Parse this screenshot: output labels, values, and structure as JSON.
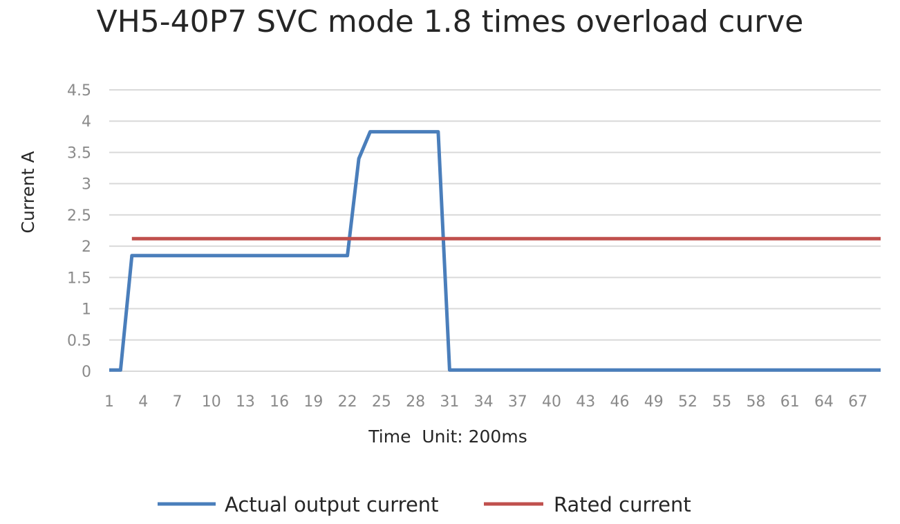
{
  "chart_data": {
    "type": "line",
    "title": "VH5-40P7 SVC mode 1.8 times overload curve",
    "xlabel": "Time  Unit: 200ms",
    "ylabel": "Current A",
    "x_range": [
      1,
      69
    ],
    "x_ticks": [
      1,
      4,
      7,
      10,
      13,
      16,
      19,
      22,
      25,
      28,
      31,
      34,
      37,
      40,
      43,
      46,
      49,
      52,
      55,
      58,
      61,
      64,
      67
    ],
    "ylim": [
      0,
      4.5
    ],
    "y_ticks": [
      0,
      0.5,
      1,
      1.5,
      2,
      2.5,
      3,
      3.5,
      4,
      4.5
    ],
    "y_tick_labels": [
      "0",
      "0.5",
      "1",
      "1.5",
      "2",
      "2.5",
      "3",
      "3.5",
      "4",
      "4.5"
    ],
    "grid": true,
    "legend_position": "bottom",
    "series": [
      {
        "name": "Actual output current",
        "color": "#4a7ebb",
        "points": [
          [
            1,
            0.02
          ],
          [
            2,
            0.02
          ],
          [
            3,
            1.85
          ],
          [
            22,
            1.85
          ],
          [
            23,
            3.4
          ],
          [
            24,
            3.83
          ],
          [
            30,
            3.83
          ],
          [
            31,
            0.02
          ],
          [
            69,
            0.02
          ]
        ]
      },
      {
        "name": "Rated current",
        "color": "#c0504d",
        "points": [
          [
            3,
            2.12
          ],
          [
            69,
            2.12
          ]
        ]
      }
    ],
    "grid_color": "#d9d9d9"
  }
}
